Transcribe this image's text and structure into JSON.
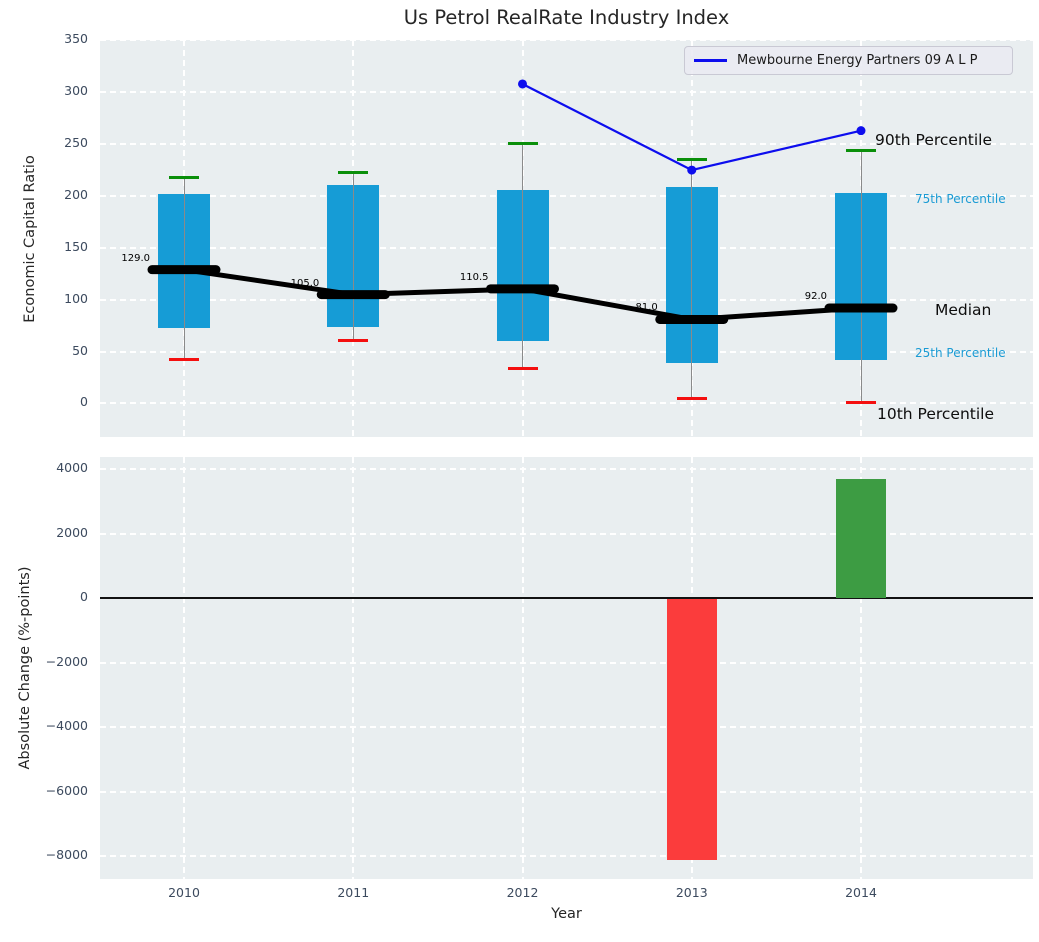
{
  "title": "Us Petrol RealRate Industry Index",
  "legend": {
    "label": "Mewbourne Energy Partners 09 A L P"
  },
  "right_labels": [
    {
      "text": "90th Percentile"
    },
    {
      "text": "75th Percentile"
    },
    {
      "text": "Median"
    },
    {
      "text": "25th Percentile"
    },
    {
      "text": "10th Percentile"
    }
  ],
  "colors": {
    "box_fill": "#169cd6",
    "median": "#000000",
    "whisker": "#8a8a8a",
    "cap_top": "#0a8f0a",
    "cap_bottom": "#f40f0f",
    "company_line": "#0d0dee",
    "bar_positive": "#3d9c43",
    "bar_negative": "#fb3c3c",
    "axes_bg": "#e9eef0",
    "grid": "#ffffff",
    "tick": "#3c4a5e",
    "percentile_label_blue": "#1a9bd4"
  },
  "chart_data": [
    {
      "type": "box+line",
      "title": "Us Petrol RealRate Industry Index",
      "ylabel": "Economic Capital Ratio",
      "categories": [
        2010,
        2011,
        2012,
        2013,
        2014
      ],
      "yticks": [
        350,
        300,
        250,
        200,
        150,
        100,
        50,
        0
      ],
      "ylim": [
        -32.3,
        350.4
      ],
      "grid": "dashed-white",
      "legend_position": "upper-right",
      "box": {
        "p90": [
          218,
          223,
          251,
          235,
          244
        ],
        "p75": [
          202,
          211,
          206,
          209,
          203
        ],
        "median": [
          129.0,
          105.0,
          110.5,
          81.0,
          92.0
        ],
        "median_labels": [
          "129.0",
          "105.0",
          "110.5",
          "81.0",
          "92.0"
        ],
        "p25": [
          73,
          74,
          60,
          39,
          42
        ],
        "p10": [
          42,
          61,
          34,
          5,
          1
        ]
      },
      "company_series": {
        "name": "Mewbourne Energy Partners 09 A L P",
        "x": [
          2012,
          2013,
          2014
        ],
        "y": [
          308,
          225,
          263
        ]
      }
    },
    {
      "type": "bar",
      "xlabel": "Year",
      "ylabel": "Absolute Change (%-points)",
      "categories": [
        2010,
        2011,
        2012,
        2013,
        2014
      ],
      "values": [
        0,
        0,
        0,
        -8100,
        3700
      ],
      "yticks": [
        4000,
        2000,
        0,
        -2000,
        -4000,
        -6000,
        -8000
      ],
      "ylim": [
        -8700,
        4370
      ],
      "zero_line": true
    }
  ]
}
